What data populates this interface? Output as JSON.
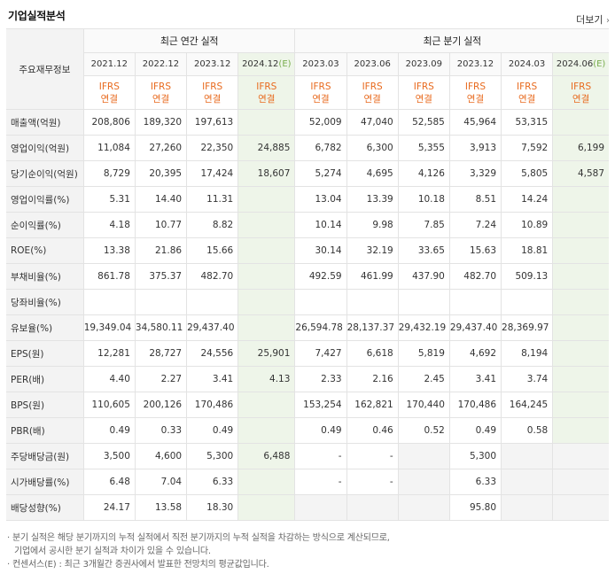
{
  "section_title": "기업실적분석",
  "more_label": "더보기",
  "more_icon": "chevron-right-icon",
  "corner_label": "주요재무정보",
  "groups": {
    "annual": "최근 연간 실적",
    "quarterly": "최근 분기 실적"
  },
  "periods": [
    {
      "label": "2021.12",
      "est": false
    },
    {
      "label": "2022.12",
      "est": false
    },
    {
      "label": "2023.12",
      "est": false
    },
    {
      "label": "2024.12",
      "est": true
    },
    {
      "label": "2023.03",
      "est": false
    },
    {
      "label": "2023.06",
      "est": false
    },
    {
      "label": "2023.09",
      "est": false
    },
    {
      "label": "2023.12",
      "est": false
    },
    {
      "label": "2024.03",
      "est": false
    },
    {
      "label": "2024.06",
      "est": true
    }
  ],
  "est_mark": "(E)",
  "ifrs_line1": "IFRS",
  "ifrs_line2": "연결",
  "rows": [
    {
      "label": "매출액(억원)",
      "values": [
        "208,806",
        "189,320",
        "197,613",
        "",
        "52,009",
        "47,040",
        "52,585",
        "45,964",
        "53,315",
        ""
      ]
    },
    {
      "label": "영업이익(억원)",
      "values": [
        "11,084",
        "27,260",
        "22,350",
        "24,885",
        "6,782",
        "6,300",
        "5,355",
        "3,913",
        "7,592",
        "6,199"
      ]
    },
    {
      "label": "당기순이익(억원)",
      "values": [
        "8,729",
        "20,395",
        "17,424",
        "18,607",
        "5,274",
        "4,695",
        "4,126",
        "3,329",
        "5,805",
        "4,587"
      ]
    },
    {
      "label": "영업이익률(%)",
      "values": [
        "5.31",
        "14.40",
        "11.31",
        "",
        "13.04",
        "13.39",
        "10.18",
        "8.51",
        "14.24",
        ""
      ]
    },
    {
      "label": "순이익률(%)",
      "values": [
        "4.18",
        "10.77",
        "8.82",
        "",
        "10.14",
        "9.98",
        "7.85",
        "7.24",
        "10.89",
        ""
      ]
    },
    {
      "label": "ROE(%)",
      "values": [
        "13.38",
        "21.86",
        "15.66",
        "",
        "30.14",
        "32.19",
        "33.65",
        "15.63",
        "18.81",
        ""
      ]
    },
    {
      "label": "부채비율(%)",
      "values": [
        "861.78",
        "375.37",
        "482.70",
        "",
        "492.59",
        "461.99",
        "437.90",
        "482.70",
        "509.13",
        ""
      ]
    },
    {
      "label": "당좌비율(%)",
      "values": [
        "",
        "",
        "",
        "",
        "",
        "",
        "",
        "",
        "",
        ""
      ]
    },
    {
      "label": "유보율(%)",
      "values": [
        "19,349.04",
        "34,580.11",
        "29,437.40",
        "",
        "26,594.78",
        "28,137.37",
        "29,432.19",
        "29,437.40",
        "28,369.97",
        ""
      ]
    },
    {
      "label": "EPS(원)",
      "values": [
        "12,281",
        "28,727",
        "24,556",
        "25,901",
        "7,427",
        "6,618",
        "5,819",
        "4,692",
        "8,194",
        ""
      ]
    },
    {
      "label": "PER(배)",
      "values": [
        "4.40",
        "2.27",
        "3.41",
        "4.13",
        "2.33",
        "2.16",
        "2.45",
        "3.41",
        "3.74",
        ""
      ]
    },
    {
      "label": "BPS(원)",
      "values": [
        "110,605",
        "200,126",
        "170,486",
        "",
        "153,254",
        "162,821",
        "170,440",
        "170,486",
        "164,245",
        ""
      ]
    },
    {
      "label": "PBR(배)",
      "values": [
        "0.49",
        "0.33",
        "0.49",
        "",
        "0.49",
        "0.46",
        "0.52",
        "0.49",
        "0.58",
        ""
      ]
    },
    {
      "label": "주당배당금(원)",
      "values": [
        "3,500",
        "4,600",
        "5,300",
        "6,488",
        "-",
        "-",
        "",
        "5,300",
        "",
        ""
      ],
      "dim": [
        4,
        5,
        6,
        8,
        9
      ]
    },
    {
      "label": "시가배당률(%)",
      "values": [
        "6.48",
        "7.04",
        "6.33",
        "",
        "-",
        "-",
        "",
        "6.33",
        "",
        ""
      ],
      "dim": [
        4,
        5,
        6,
        8,
        9
      ]
    },
    {
      "label": "배당성향(%)",
      "values": [
        "24.17",
        "13.58",
        "18.30",
        "",
        "",
        "",
        "",
        "95.80",
        "",
        ""
      ],
      "dim": [
        4,
        5,
        6,
        8,
        9
      ]
    }
  ],
  "notes": [
    "· 분기 실적은 해당 분기까지의 누적 실적에서 직전 분기까지의 누적 실적을 차감하는 방식으로 계산되므로,",
    "기업에서 공시한 분기 실적과 차이가 있을 수 있습니다.",
    "· 컨센서스(E) : 최근 3개월간 증권사에서 발표한 전망치의 평균값입니다."
  ],
  "colors": {
    "accent_orange": "#e86a1e",
    "estimate_bg": "#eef5e9",
    "estimate_text": "#79ad4e"
  }
}
